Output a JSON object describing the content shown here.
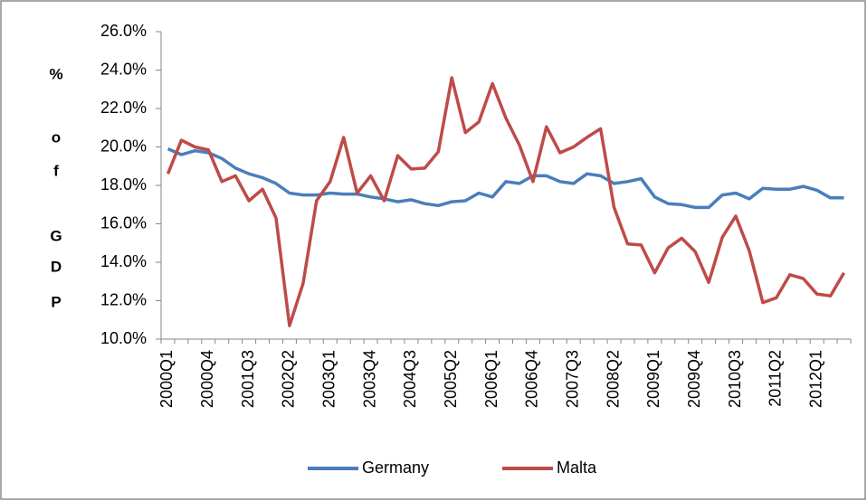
{
  "chart_data": {
    "type": "line",
    "y_label": [
      "%",
      "o",
      "f",
      "G",
      "D",
      "P"
    ],
    "categories": [
      "2000Q1",
      null,
      null,
      "2000Q4",
      null,
      null,
      "2001Q3",
      null,
      null,
      "2002Q2",
      null,
      null,
      "2003Q1",
      null,
      null,
      "2003Q4",
      null,
      null,
      "2004Q3",
      null,
      null,
      "2005Q2",
      null,
      null,
      "2006Q1",
      null,
      null,
      "2006Q4",
      null,
      null,
      "2007Q3",
      null,
      null,
      "2008Q2",
      null,
      null,
      "2009Q1",
      null,
      null,
      "2009Q4",
      null,
      null,
      "2010Q3",
      null,
      null,
      "2011Q2",
      null,
      null,
      "2012Q1",
      null,
      null
    ],
    "series": [
      {
        "name": "Germany",
        "color": "#4a7ebb",
        "values": [
          19.9,
          19.6,
          19.8,
          19.7,
          19.4,
          18.9,
          18.6,
          18.4,
          18.1,
          17.6,
          17.5,
          17.5,
          17.6,
          17.55,
          17.55,
          17.4,
          17.3,
          17.15,
          17.25,
          17.05,
          16.95,
          17.15,
          17.2,
          17.6,
          17.4,
          18.2,
          18.1,
          18.5,
          18.5,
          18.2,
          18.1,
          18.6,
          18.5,
          18.1,
          18.2,
          18.35,
          17.4,
          17.05,
          17.0,
          16.85,
          16.85,
          17.5,
          17.6,
          17.3,
          17.85,
          17.8,
          17.8,
          17.95,
          17.75,
          17.35,
          17.35
        ]
      },
      {
        "name": "Malta",
        "color": "#be4b48",
        "values": [
          18.6,
          20.35,
          20.0,
          19.85,
          18.2,
          18.5,
          17.2,
          17.8,
          16.3,
          10.7,
          12.9,
          17.2,
          18.2,
          20.5,
          17.6,
          18.5,
          17.2,
          19.55,
          18.85,
          18.9,
          19.75,
          23.6,
          20.75,
          21.3,
          23.3,
          21.5,
          20.1,
          18.2,
          21.05,
          19.7,
          20.0,
          20.5,
          20.95,
          16.85,
          14.95,
          14.9,
          13.45,
          14.75,
          15.25,
          14.55,
          12.95,
          15.3,
          16.4,
          14.6,
          11.9,
          12.15,
          13.35,
          13.15,
          12.35,
          12.25,
          13.45
        ]
      }
    ],
    "ylim": [
      10,
      26
    ],
    "yticks": [
      {
        "value": 10,
        "label": "10.0%"
      },
      {
        "value": 12,
        "label": "12.0%"
      },
      {
        "value": 14,
        "label": "14.0%"
      },
      {
        "value": 16,
        "label": "16.0%"
      },
      {
        "value": 18,
        "label": "18.0%"
      },
      {
        "value": 20,
        "label": "20.0%"
      },
      {
        "value": 22,
        "label": "22.0%"
      },
      {
        "value": 24,
        "label": "24.0%"
      },
      {
        "value": 26,
        "label": "26.0%"
      }
    ],
    "grid": false,
    "legend": "bottom"
  }
}
